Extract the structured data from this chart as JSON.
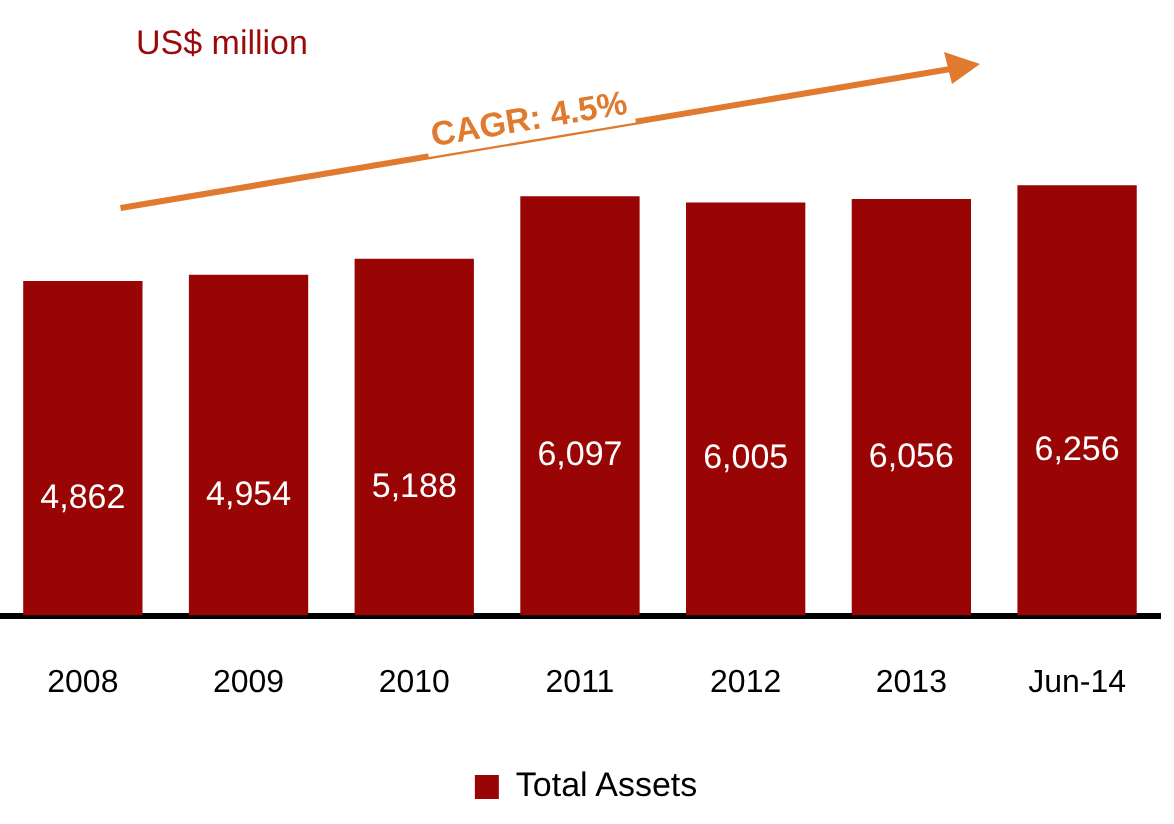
{
  "chart_data": {
    "type": "bar",
    "categories": [
      "2008",
      "2009",
      "2010",
      "2011",
      "2012",
      "2013",
      "Jun-14"
    ],
    "series": [
      {
        "name": "Total Assets",
        "color": "#990404",
        "values": [
          4862,
          4954,
          5188,
          6097,
          6005,
          6056,
          6256
        ],
        "value_labels": [
          "4,862",
          "4,954",
          "5,188",
          "6,097",
          "6,005",
          "6,056",
          "6,256"
        ]
      }
    ],
    "legend": "bottom",
    "grid": false,
    "annotations": [
      "US$ million",
      "CAGR: 4.5%"
    ]
  }
}
